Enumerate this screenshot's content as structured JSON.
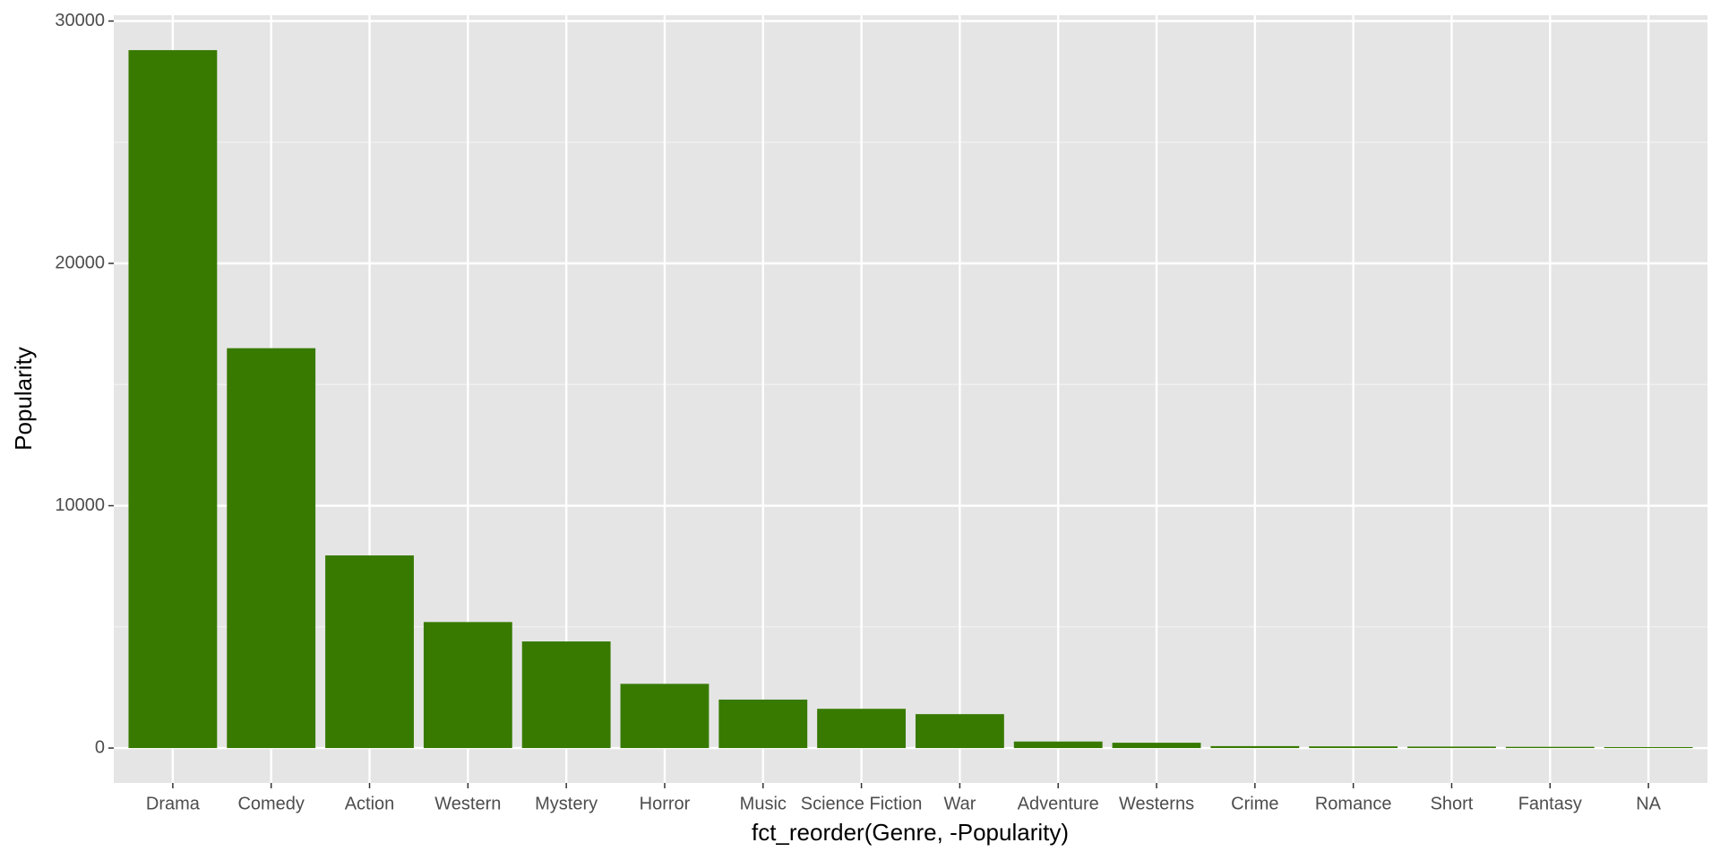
{
  "chart_data": {
    "type": "bar",
    "x_label": "fct_reorder(Genre, -Popularity)",
    "y_label": "Popularity",
    "categories": [
      "Drama",
      "Comedy",
      "Action",
      "Western",
      "Mystery",
      "Horror",
      "Music",
      "Science Fiction",
      "War",
      "Adventure",
      "Westerns",
      "Crime",
      "Romance",
      "Short",
      "Fantasy",
      "NA"
    ],
    "values": [
      28800,
      16500,
      7950,
      5200,
      4400,
      2650,
      2000,
      1620,
      1400,
      270,
      220,
      80,
      70,
      60,
      50,
      40
    ],
    "color": "#387a00",
    "ylim": [
      -1440,
      30240
    ],
    "yticks": [
      0,
      10000,
      20000,
      30000
    ],
    "y_minor_ticks": [
      5000,
      15000,
      25000
    ],
    "grid": true
  }
}
